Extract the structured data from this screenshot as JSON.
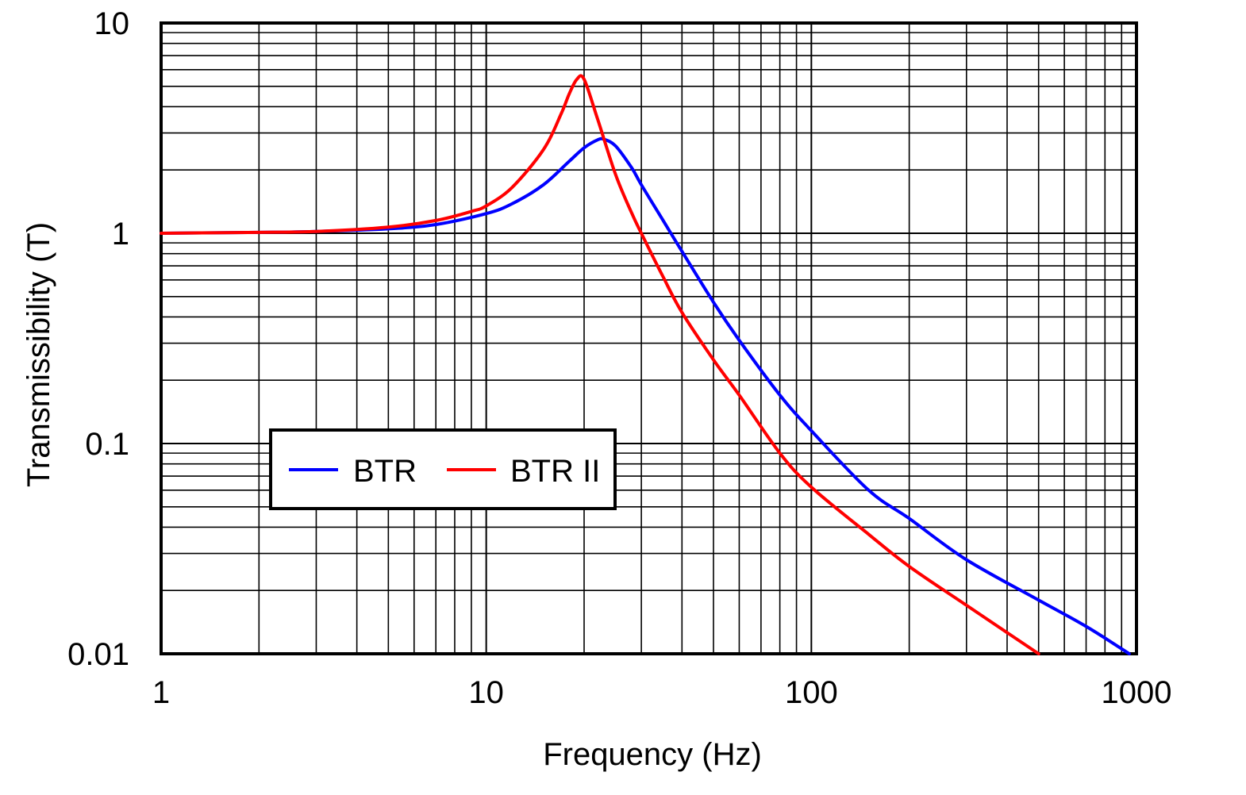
{
  "chart_data": {
    "type": "line",
    "title": "",
    "xlabel": "Frequency (Hz)",
    "ylabel": "Transmissibility (T)",
    "x_scale": "log",
    "y_scale": "log",
    "xlim": [
      1,
      1000
    ],
    "ylim": [
      0.01,
      10
    ],
    "x_ticks": [
      1,
      10,
      100,
      1000
    ],
    "x_tick_labels": [
      "1",
      "10",
      "100",
      "1000"
    ],
    "y_ticks": [
      0.01,
      0.1,
      1,
      10
    ],
    "y_tick_labels": [
      "0.01",
      "0.1",
      "1",
      "10"
    ],
    "grid": "major and minor",
    "legend_position": "lower-left",
    "series": [
      {
        "name": "BTR",
        "color": "#0000ff",
        "x": [
          1,
          2,
          3,
          5,
          7,
          10,
          12,
          15,
          18,
          20,
          22,
          23,
          25,
          28,
          30,
          35,
          40,
          50,
          60,
          80,
          100,
          150,
          200,
          300,
          500,
          700,
          950
        ],
        "y": [
          1.0,
          1.01,
          1.02,
          1.05,
          1.1,
          1.24,
          1.38,
          1.7,
          2.2,
          2.55,
          2.78,
          2.8,
          2.6,
          2.05,
          1.7,
          1.15,
          0.82,
          0.47,
          0.31,
          0.17,
          0.115,
          0.06,
          0.044,
          0.028,
          0.018,
          0.0135,
          0.01
        ]
      },
      {
        "name": "BTR II",
        "color": "#ff0000",
        "x": [
          1,
          2,
          3,
          5,
          7,
          9,
          10,
          12,
          15,
          17,
          18,
          19,
          20,
          22,
          25,
          28,
          30,
          35,
          40,
          50,
          60,
          80,
          100,
          150,
          200,
          300,
          500
        ],
        "y": [
          1.0,
          1.01,
          1.02,
          1.07,
          1.15,
          1.27,
          1.35,
          1.65,
          2.5,
          3.7,
          4.6,
          5.4,
          5.4,
          3.5,
          1.9,
          1.25,
          1.0,
          0.62,
          0.42,
          0.25,
          0.17,
          0.09,
          0.062,
          0.037,
          0.026,
          0.017,
          0.01
        ]
      }
    ]
  }
}
